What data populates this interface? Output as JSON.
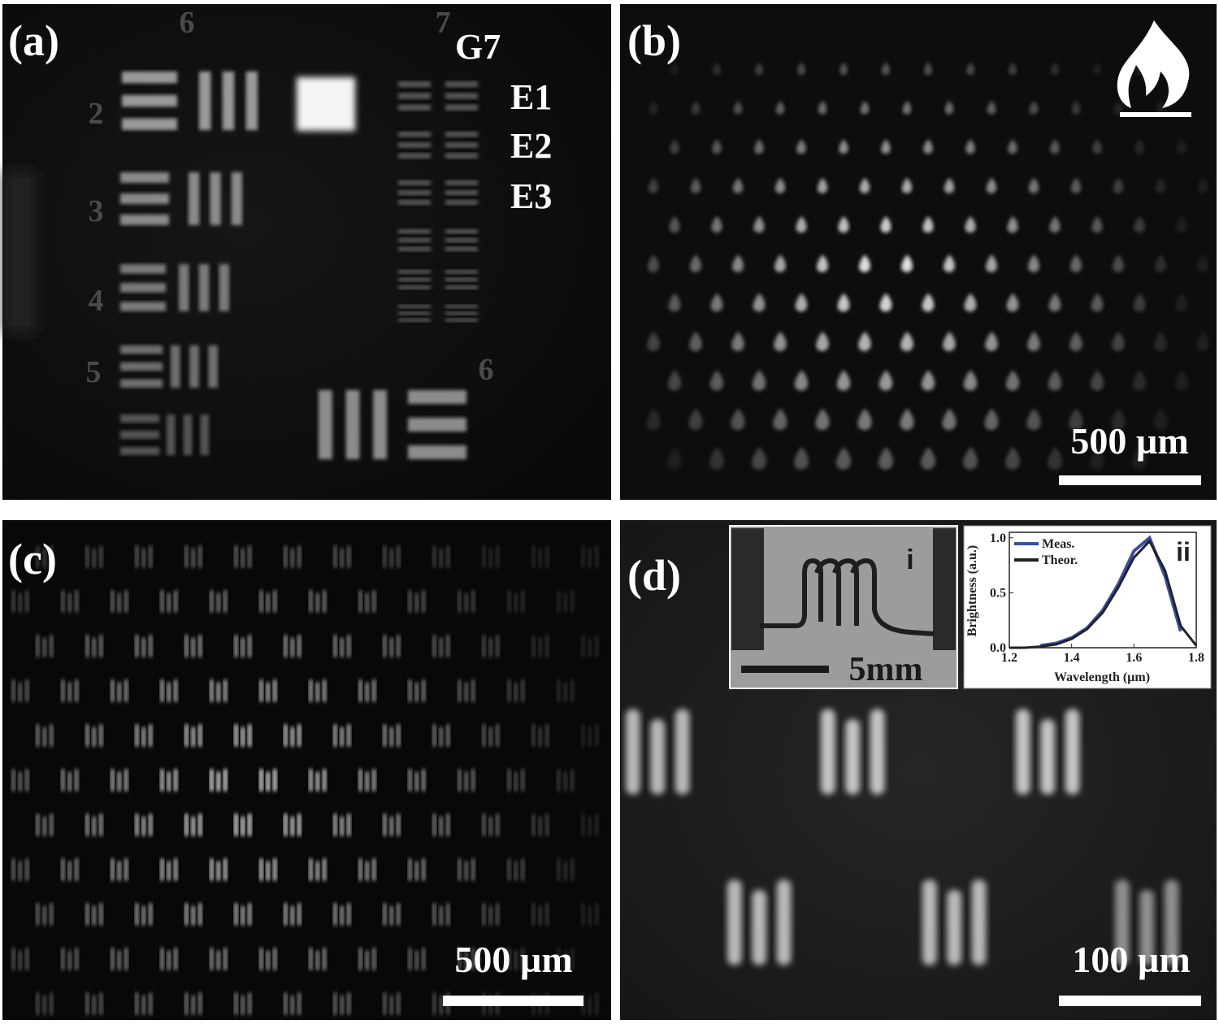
{
  "panels": [
    {
      "label": "(a)",
      "annotations": [
        "G7",
        "E1",
        "E2",
        "E3"
      ],
      "target_numbers": [
        "6",
        "7",
        "2",
        "3",
        "4",
        "5",
        "6"
      ]
    },
    {
      "label": "(b)",
      "scale_bar": "500 µm"
    },
    {
      "label": "(c)",
      "scale_bar": "500 µm"
    },
    {
      "label": "(d)",
      "scale_bar": "100 µm",
      "insets": [
        {
          "label": "i",
          "scale_bar": "5mm"
        },
        {
          "label": "ii",
          "chart": {
            "type": "line",
            "xlabel": "Wavelength (µm)",
            "ylabel": "Brightness (a.u.)",
            "x": [
              1.2,
              1.25,
              1.3,
              1.35,
              1.4,
              1.45,
              1.5,
              1.55,
              1.6,
              1.65,
              1.7,
              1.75,
              1.8
            ],
            "series": [
              {
                "name": "Meas.",
                "color": "#3a4ea6",
                "values": [
                  null,
                  null,
                  0.02,
                  0.04,
                  0.09,
                  0.18,
                  0.34,
                  0.58,
                  0.88,
                  1.0,
                  0.65,
                  0.15,
                  null
                ]
              },
              {
                "name": "Theor.",
                "color": "#222222",
                "values": [
                  0,
                  0,
                  0.01,
                  0.03,
                  0.08,
                  0.17,
                  0.32,
                  0.55,
                  0.82,
                  0.97,
                  0.7,
                  0.2,
                  0.02
                ]
              }
            ],
            "xlim": [
              1.2,
              1.8
            ],
            "ylim": [
              0,
              1.05
            ],
            "xticks": [
              1.2,
              1.4,
              1.6,
              1.8
            ],
            "yticks": [
              {
                "value": 0,
                "label": "0.0"
              },
              0.5,
              {
                "value": 1,
                "label": "1.0"
              }
            ],
            "legend": "upper left"
          }
        }
      ]
    }
  ]
}
